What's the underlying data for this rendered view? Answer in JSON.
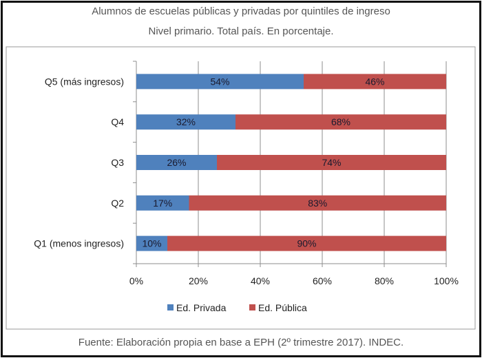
{
  "chart_data": {
    "type": "bar",
    "orientation": "horizontal",
    "stacked": true,
    "title": "Alumnos de escuelas públicas y privadas por quintiles de ingreso",
    "subtitle": "Nivel primario. Total país. En porcentaje.",
    "categories": [
      "Q5 (más ingresos)",
      "Q4",
      "Q3",
      "Q2",
      "Q1 (menos ingresos)"
    ],
    "series": [
      {
        "name": "Ed. Privada",
        "color": "#4f81bd",
        "values": [
          54,
          32,
          26,
          17,
          10
        ],
        "labels": [
          "54%",
          "32%",
          "26%",
          "17%",
          "10%"
        ]
      },
      {
        "name": "Ed. Pública",
        "color": "#c0504d",
        "values": [
          46,
          68,
          74,
          83,
          90
        ],
        "labels": [
          "46%",
          "68%",
          "74%",
          "83%",
          "90%"
        ]
      }
    ],
    "xlim": [
      0,
      100
    ],
    "xticks": [
      "0%",
      "20%",
      "40%",
      "60%",
      "80%",
      "100%"
    ],
    "grid": true,
    "legend": "bottom",
    "source": "Fuente: Elaboración propia en base a EPH (2º trimestre 2017). INDEC."
  }
}
